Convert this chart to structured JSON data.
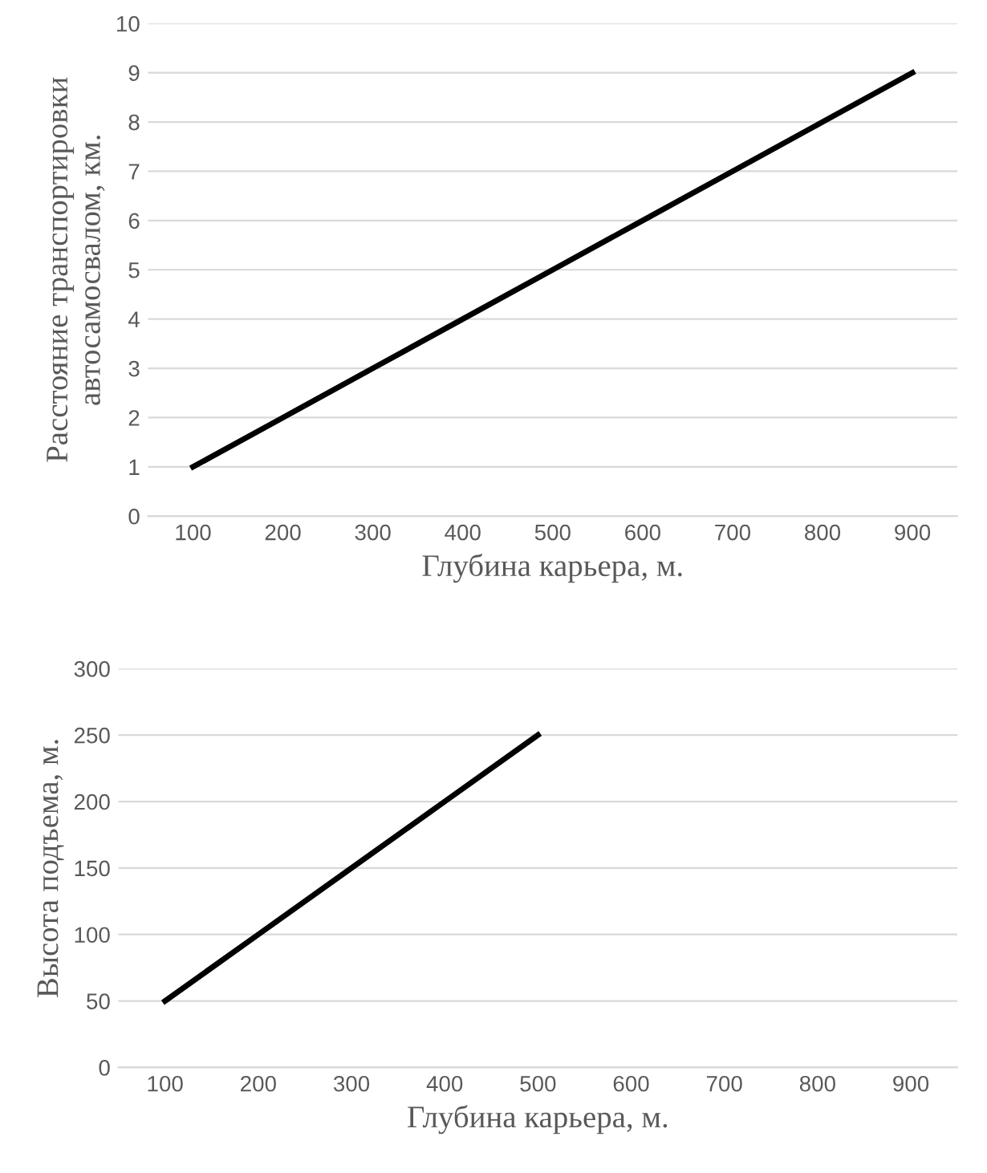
{
  "chart_data": [
    {
      "type": "line",
      "xlabel": "Глубина карьера, м.",
      "ylabel": "Расстояние транспортировки\nавтосамосвалом, км.",
      "categories": [
        "100",
        "200",
        "300",
        "400",
        "500",
        "600",
        "700",
        "800",
        "900"
      ],
      "series": [
        {
          "color": "#000000",
          "values": [
            1,
            2,
            3,
            4,
            5,
            6,
            7,
            8,
            9
          ]
        }
      ],
      "ylim": [
        0,
        10
      ],
      "yticks": [
        0,
        1,
        2,
        3,
        4,
        5,
        6,
        7,
        8,
        9,
        10
      ],
      "grid": "y",
      "legend": false,
      "marker": "none",
      "line_style": "solid"
    },
    {
      "type": "line",
      "xlabel": "Глубина карьера, м.",
      "ylabel": "Высота подъема, м.",
      "categories": [
        "100",
        "200",
        "300",
        "400",
        "500",
        "600",
        "700",
        "800",
        "900"
      ],
      "series": [
        {
          "color": "#000000",
          "values": [
            50,
            100,
            150,
            200,
            250,
            null,
            null,
            null,
            null
          ]
        }
      ],
      "ylim": [
        0,
        300
      ],
      "yticks": [
        0,
        50,
        100,
        150,
        200,
        250,
        300
      ],
      "grid": "y",
      "legend": false,
      "marker": "none",
      "line_style": "solid"
    }
  ]
}
